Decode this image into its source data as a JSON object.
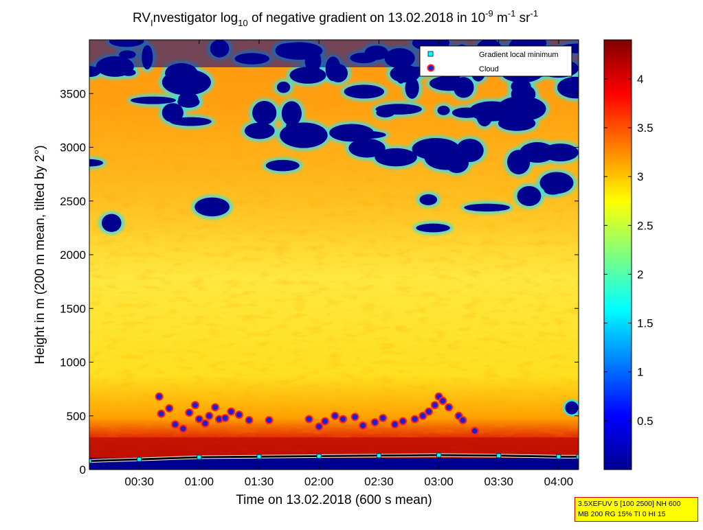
{
  "chart_data": {
    "type": "heatmap",
    "title": {
      "prefix": "RV",
      "sub1": "I",
      "mid1": "nvestigator log",
      "sub2": "10",
      "mid2": " of negative gradient on 13.02.2018 in 10",
      "sup1": "-9",
      "mid3": " m",
      "sup2": "-1",
      "mid4": " sr",
      "sup3": "-1"
    },
    "xlabel": "Time on 13.02.2018 (600 s mean)",
    "ylabel": "Height in m (200 m mean, tilted by 2°)",
    "x_range": [
      "00:05",
      "04:10"
    ],
    "x_ticks": [
      "00:30",
      "01:00",
      "01:30",
      "02:00",
      "02:30",
      "03:00",
      "03:30",
      "04:00"
    ],
    "ylim": [
      0,
      4000
    ],
    "y_ticks": [
      "0",
      "500",
      "1000",
      "1500",
      "2000",
      "2500",
      "3000",
      "3500"
    ],
    "colorbar": {
      "range": [
        0,
        4.4
      ],
      "ticks": [
        "0.5",
        "1",
        "1.5",
        "2",
        "2.5",
        "3",
        "3.5",
        "4"
      ]
    },
    "legend": {
      "placement": "top-right",
      "entries": [
        {
          "label": "Gradient local minimum",
          "marker": "cyan-square"
        },
        {
          "label": "Cloud",
          "marker": "red-blue-circle"
        }
      ]
    },
    "series": [
      {
        "name": "Cloud",
        "x": [
          "00:40",
          "00:41",
          "00:45",
          "00:48",
          "00:52",
          "00:55",
          "00:58",
          "01:00",
          "01:03",
          "01:05",
          "01:08",
          "01:10",
          "01:13",
          "01:16",
          "01:20",
          "01:25",
          "01:35",
          "01:55",
          "02:00",
          "02:03",
          "02:08",
          "02:12",
          "02:18",
          "02:22",
          "02:28",
          "02:32",
          "02:38",
          "02:42",
          "02:48",
          "02:52",
          "02:55",
          "02:58",
          "03:00",
          "03:02",
          "03:05",
          "03:10",
          "03:12",
          "03:18"
        ],
        "y": [
          680,
          520,
          570,
          420,
          380,
          530,
          600,
          470,
          430,
          500,
          580,
          470,
          480,
          540,
          510,
          460,
          460,
          470,
          400,
          450,
          500,
          470,
          490,
          410,
          440,
          480,
          420,
          450,
          470,
          500,
          540,
          600,
          680,
          640,
          580,
          500,
          460,
          360
        ]
      },
      {
        "name": "Gradient local minimum",
        "x": [
          "00:05",
          "00:30",
          "01:00",
          "01:30",
          "02:00",
          "02:30",
          "03:00",
          "03:30",
          "04:00",
          "04:10"
        ],
        "y": [
          80,
          95,
          115,
          120,
          125,
          130,
          135,
          130,
          120,
          120
        ]
      }
    ]
  },
  "info_box": {
    "line1": "3.5XEFUV 5 [100 2500] NH 600",
    "line2": "MB 200 RG 15% TI 0 HI 15"
  },
  "colors": {
    "min": "#00008f",
    "mid": "#ffff00",
    "max": "#800000",
    "cloud_fill": "#1f1fd0",
    "cloud_edge": "#ff2020",
    "min_marker": "#00ffff"
  }
}
